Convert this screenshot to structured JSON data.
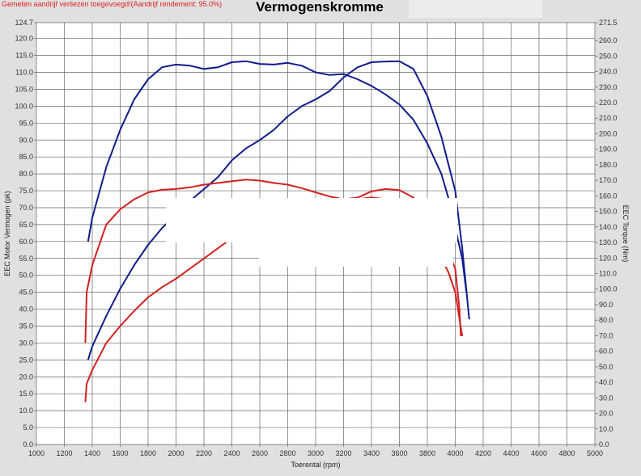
{
  "header": {
    "note": "Gemeten aandrijf verliezen toegevoegd!(Aandrijf rendement: 95.0%)",
    "title": "Vermogenskromme"
  },
  "chart_data": {
    "type": "line",
    "title": "Vermogenskromme",
    "xlabel": "Toerental (rpm)",
    "ylabel": "EEC Motor Vermogen (pk)",
    "y2label": "EEC Torque (Nm)",
    "xlim": [
      1000,
      5000
    ],
    "ylim": [
      0,
      124.7
    ],
    "y2lim": [
      0,
      271.5
    ],
    "grid": true,
    "xticks": [
      1000,
      1200,
      1400,
      1600,
      1800,
      2000,
      2200,
      2400,
      2600,
      2800,
      3000,
      3200,
      3400,
      3600,
      3800,
      4000,
      4200,
      4400,
      4600,
      4800,
      5000
    ],
    "yticks": [
      "0.0",
      "5.0",
      "10.0",
      "15.0",
      "20.0",
      "25.0",
      "30.0",
      "35.0",
      "40.0",
      "45.0",
      "50.0",
      "55.0",
      "60.0",
      "65.0",
      "70.0",
      "75.0",
      "80.0",
      "85.0",
      "90.0",
      "95.0",
      "100.0",
      "105.0",
      "110.0",
      "115.0",
      "120.0",
      "124.7"
    ],
    "y2ticks": [
      "0.0",
      "10.0",
      "20.0",
      "30.0",
      "40.0",
      "50.0",
      "60.0",
      "70.0",
      "80.0",
      "90.0",
      "100.0",
      "110.0",
      "120.0",
      "130.0",
      "140.0",
      "150.0",
      "160.0",
      "170.0",
      "180.0",
      "190.0",
      "200.0",
      "210.0",
      "220.0",
      "230.0",
      "240.0",
      "250.0",
      "260.0",
      "271.5"
    ],
    "series": [
      {
        "axis": "y2",
        "color": "#101c8c",
        "x": [
          1370,
          1400,
          1500,
          1600,
          1700,
          1800,
          1900,
          2000,
          2100,
          2200,
          2300,
          2400,
          2500,
          2600,
          2700,
          2800,
          2900,
          3000,
          3100,
          3200,
          3300,
          3400,
          3500,
          3600,
          3700,
          3800,
          3900,
          3950,
          4000,
          4050,
          4080
        ],
        "values": [
          130.6,
          145.9,
          178.5,
          202.5,
          222.1,
          235.1,
          242.8,
          244.5,
          243.8,
          241.7,
          242.8,
          246.0,
          246.7,
          244.9,
          244.5,
          245.6,
          243.8,
          239.5,
          237.8,
          238.4,
          235.1,
          230.8,
          225.3,
          218.8,
          209.0,
          193.8,
          174.2,
          158.9,
          139.3,
          119.7,
          98.0
        ]
      },
      {
        "axis": "y",
        "color": "#101c8c",
        "x": [
          1370,
          1400,
          1500,
          1600,
          1700,
          1800,
          1900,
          2000,
          2100,
          2200,
          2300,
          2400,
          2500,
          2600,
          2700,
          2800,
          2900,
          3000,
          3100,
          3200,
          3300,
          3400,
          3500,
          3600,
          3700,
          3800,
          3900,
          4000,
          4050,
          4100
        ],
        "values": [
          25,
          29,
          38,
          46,
          53,
          59,
          64,
          68,
          72,
          75.5,
          79,
          84,
          87.5,
          90,
          93,
          97,
          100,
          102,
          104.5,
          108.5,
          111.5,
          113,
          113.2,
          113.3,
          111,
          103,
          91,
          75,
          58,
          37
        ]
      },
      {
        "axis": "y2",
        "color": "#d42020",
        "x": [
          1350,
          1360,
          1400,
          1500,
          1600,
          1700,
          1800,
          1900,
          2000,
          2100,
          2200,
          2300,
          2400,
          2500,
          2600,
          2700,
          2800,
          2900,
          3000,
          3100,
          3200,
          3300,
          3400,
          3500,
          3600,
          3700,
          3800,
          3900,
          3950,
          4000,
          4030,
          4040
        ],
        "values": [
          65.3,
          98.0,
          115.4,
          141.5,
          151.3,
          157.8,
          162.2,
          163.9,
          164.4,
          165.5,
          167.2,
          168.3,
          169.4,
          170.5,
          169.8,
          168.3,
          167.2,
          165.0,
          162.2,
          159.6,
          157.8,
          158.9,
          162.9,
          164.4,
          163.7,
          158.9,
          143.7,
          132.8,
          124.1,
          113.2,
          87.1,
          69.7
        ]
      },
      {
        "axis": "y",
        "color": "#d42020",
        "x": [
          1350,
          1360,
          1400,
          1500,
          1600,
          1700,
          1800,
          1900,
          2000,
          2100,
          2200,
          2300,
          2400,
          2500,
          2600,
          2700,
          2800,
          2900,
          3000,
          3100,
          3200,
          3300,
          3400,
          3500,
          3600,
          3700,
          3800,
          3900,
          3950,
          4000,
          4050
        ],
        "values": [
          12.5,
          18,
          22,
          30,
          35,
          39.5,
          43.5,
          46.5,
          49,
          52,
          55,
          58,
          61,
          64,
          66,
          67.5,
          68.5,
          69.5,
          70,
          71,
          72,
          72.5,
          73,
          72.5,
          70,
          66,
          60,
          55,
          51,
          45,
          32
        ]
      }
    ]
  }
}
